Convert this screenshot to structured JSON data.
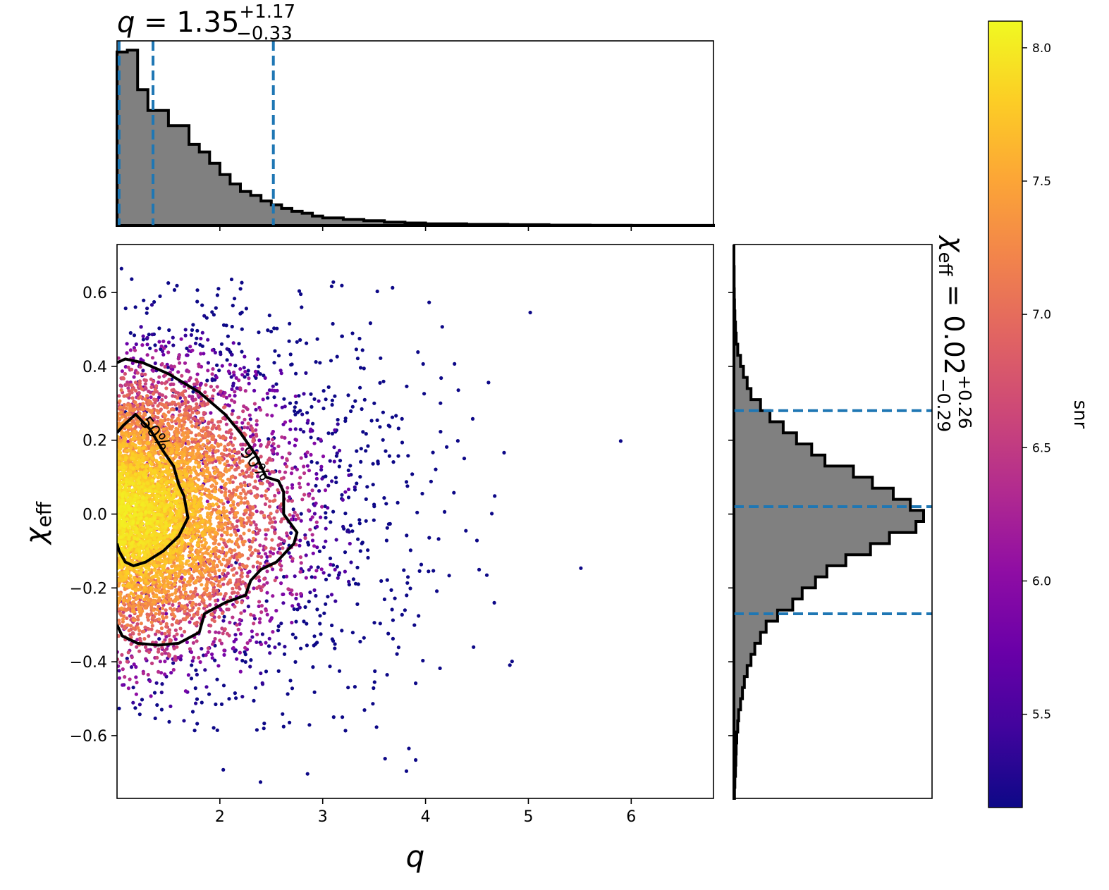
{
  "title_top": {
    "prefix": "q",
    "eq": " = 1.35",
    "sup": "+1.17",
    "sub": "−0.33"
  },
  "title_right": {
    "prefix": "χ",
    "prefix_sub": "eff",
    "eq": " = 0.02",
    "sup": "+0.26",
    "sub": "−0.29"
  },
  "xlabel": "q",
  "ylabel": "χ",
  "ylabel_sub": "eff",
  "colorbar_label": "snr",
  "contour_labels": [
    "50%",
    "90%"
  ],
  "colors": {
    "hist_fill": "#808080",
    "quantile_line": "#1f77b4",
    "contour": "#000000"
  },
  "colormap": "plasma",
  "chart_data": [
    {
      "type": "scatter",
      "name": "joint",
      "xlim": [
        1.0,
        6.8
      ],
      "ylim": [
        -0.77,
        0.73
      ],
      "xticks": [
        2,
        3,
        4,
        5,
        6
      ],
      "xtick_labels": [
        "2",
        "3",
        "4",
        "5",
        "6"
      ],
      "yticks": [
        -0.6,
        -0.4,
        -0.2,
        0.0,
        0.2,
        0.4,
        0.6
      ],
      "ytick_labels": [
        "−0.6",
        "−0.4",
        "−0.2",
        "0.0",
        "0.2",
        "0.4",
        "0.6"
      ],
      "color_variable": "snr",
      "color_range": [
        5.15,
        8.1
      ],
      "contours": [
        {
          "label": "50%",
          "points": [
            [
              1.0,
              0.22
            ],
            [
              1.06,
              0.24
            ],
            [
              1.18,
              0.27
            ],
            [
              1.32,
              0.23
            ],
            [
              1.45,
              0.17
            ],
            [
              1.55,
              0.13
            ],
            [
              1.6,
              0.08
            ],
            [
              1.65,
              0.05
            ],
            [
              1.69,
              -0.01
            ],
            [
              1.6,
              -0.06
            ],
            [
              1.45,
              -0.1
            ],
            [
              1.28,
              -0.13
            ],
            [
              1.16,
              -0.14
            ],
            [
              1.08,
              -0.13
            ],
            [
              1.02,
              -0.1
            ],
            [
              1.0,
              -0.08
            ]
          ]
        },
        {
          "label": "90%",
          "points": [
            [
              1.0,
              0.41
            ],
            [
              1.08,
              0.42
            ],
            [
              1.25,
              0.41
            ],
            [
              1.5,
              0.38
            ],
            [
              1.8,
              0.33
            ],
            [
              2.05,
              0.27
            ],
            [
              2.2,
              0.22
            ],
            [
              2.35,
              0.16
            ],
            [
              2.45,
              0.1
            ],
            [
              2.57,
              0.09
            ],
            [
              2.62,
              0.06
            ],
            [
              2.62,
              0.0
            ],
            [
              2.75,
              -0.05
            ],
            [
              2.72,
              -0.08
            ],
            [
              2.55,
              -0.13
            ],
            [
              2.4,
              -0.15
            ],
            [
              2.3,
              -0.18
            ],
            [
              2.25,
              -0.22
            ],
            [
              2.05,
              -0.24
            ],
            [
              1.85,
              -0.27
            ],
            [
              1.8,
              -0.32
            ],
            [
              1.6,
              -0.35
            ],
            [
              1.4,
              -0.355
            ],
            [
              1.2,
              -0.35
            ],
            [
              1.05,
              -0.33
            ],
            [
              1.0,
              -0.3
            ]
          ]
        }
      ]
    },
    {
      "type": "bar",
      "name": "q marginal histogram",
      "bin_edges": [
        1.0,
        1.1,
        1.2,
        1.3,
        1.4,
        1.5,
        1.6,
        1.7,
        1.8,
        1.9,
        2.0,
        2.1,
        2.2,
        2.3,
        2.4,
        2.5,
        2.6,
        2.7,
        2.8,
        2.9,
        3.0,
        3.2,
        3.4,
        3.6,
        3.8,
        4.0,
        4.4,
        4.8,
        5.2,
        5.6,
        6.0,
        6.8
      ],
      "values": [
        0.92,
        0.93,
        0.72,
        0.61,
        0.61,
        0.53,
        0.53,
        0.43,
        0.39,
        0.33,
        0.27,
        0.22,
        0.18,
        0.16,
        0.13,
        0.11,
        0.09,
        0.075,
        0.065,
        0.05,
        0.04,
        0.032,
        0.025,
        0.018,
        0.013,
        0.009,
        0.006,
        0.004,
        0.002,
        0.001,
        0.0005
      ],
      "quantiles": [
        1.02,
        1.35,
        2.52
      ]
    },
    {
      "type": "bar",
      "name": "chi_eff marginal histogram",
      "orientation": "horizontal",
      "bin_edges": [
        -0.77,
        -0.74,
        -0.71,
        -0.68,
        -0.65,
        -0.62,
        -0.59,
        -0.56,
        -0.53,
        -0.5,
        -0.47,
        -0.44,
        -0.41,
        -0.38,
        -0.35,
        -0.32,
        -0.29,
        -0.26,
        -0.23,
        -0.2,
        -0.17,
        -0.14,
        -0.11,
        -0.08,
        -0.05,
        -0.02,
        0.01,
        0.04,
        0.07,
        0.1,
        0.13,
        0.16,
        0.19,
        0.22,
        0.25,
        0.28,
        0.31,
        0.34,
        0.37,
        0.4,
        0.43,
        0.46,
        0.49,
        0.52,
        0.55,
        0.58,
        0.61,
        0.64,
        0.67,
        0.7,
        0.73
      ],
      "values": [
        0.003,
        0.005,
        0.008,
        0.01,
        0.012,
        0.015,
        0.02,
        0.025,
        0.035,
        0.045,
        0.055,
        0.07,
        0.09,
        0.11,
        0.14,
        0.17,
        0.23,
        0.31,
        0.36,
        0.43,
        0.49,
        0.59,
        0.72,
        0.82,
        0.96,
        1.0,
        0.93,
        0.84,
        0.73,
        0.63,
        0.48,
        0.41,
        0.33,
        0.26,
        0.19,
        0.14,
        0.09,
        0.07,
        0.05,
        0.035,
        0.02,
        0.012,
        0.008,
        0.005,
        0.003,
        0.002,
        0.001,
        0.001,
        0.0,
        0.0
      ],
      "quantiles": [
        -0.27,
        0.02,
        0.28
      ]
    },
    {
      "type": "colorbar",
      "name": "snr colorbar",
      "range": [
        5.15,
        8.1
      ],
      "ticks": [
        5.5,
        6.0,
        6.5,
        7.0,
        7.5,
        8.0
      ],
      "tick_labels": [
        "5.5",
        "6.0",
        "6.5",
        "7.0",
        "7.5",
        "8.0"
      ]
    }
  ]
}
